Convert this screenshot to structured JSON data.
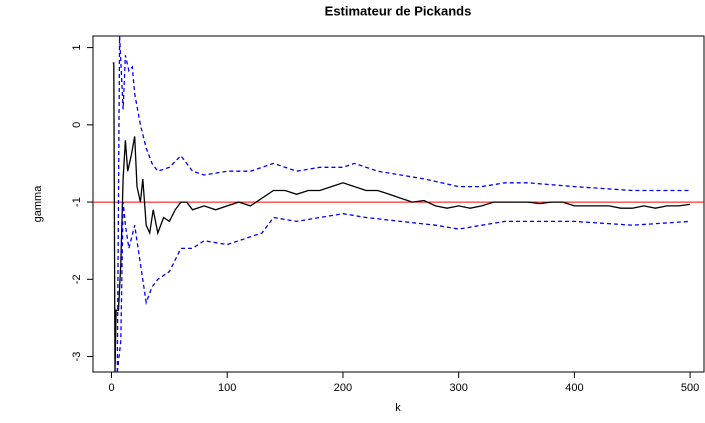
{
  "chart_data": {
    "type": "line",
    "title": "Estimateur de Pickands",
    "xlabel": "k",
    "ylabel": "gamma",
    "xlim": [
      -16,
      512
    ],
    "ylim": [
      -3.2,
      1.15
    ],
    "xticks": [
      0,
      100,
      200,
      300,
      400,
      500
    ],
    "yticks": [
      -3,
      -2,
      -1,
      0,
      1
    ],
    "hline": {
      "value": -1,
      "color": "#ff0000"
    },
    "series": [
      {
        "color": "#000000",
        "dash": false,
        "x": [
          1,
          2,
          3,
          4,
          6,
          8,
          10,
          12,
          14,
          17,
          20,
          22,
          25,
          27,
          30,
          33,
          36,
          40,
          45,
          50,
          55,
          60,
          65,
          70,
          80,
          90,
          100,
          110,
          120,
          130,
          140,
          150,
          160,
          170,
          180,
          190,
          200,
          210,
          220,
          230,
          240,
          250,
          260,
          270,
          280,
          290,
          300,
          310,
          320,
          330,
          340,
          350,
          360,
          370,
          380,
          390,
          400,
          410,
          420,
          430,
          440,
          450,
          460,
          470,
          480,
          490,
          500
        ],
        "values": [
          0.8,
          0.8,
          -3.2,
          -2.4,
          -2.4,
          -1.8,
          -0.7,
          -0.2,
          -0.6,
          -0.4,
          -0.15,
          -0.8,
          -1.0,
          -0.7,
          -1.3,
          -1.4,
          -1.1,
          -1.4,
          -1.2,
          -1.25,
          -1.1,
          -1.0,
          -1.0,
          -1.1,
          -1.05,
          -1.1,
          -1.05,
          -1.0,
          -1.05,
          -0.95,
          -0.85,
          -0.85,
          -0.9,
          -0.85,
          -0.85,
          -0.8,
          -0.75,
          -0.8,
          -0.85,
          -0.85,
          -0.9,
          -0.95,
          -1.0,
          -0.98,
          -1.05,
          -1.08,
          -1.05,
          -1.08,
          -1.05,
          -1.0,
          -1.0,
          -1.0,
          -1.0,
          -1.02,
          -1.0,
          -1.0,
          -1.05,
          -1.05,
          -1.05,
          -1.05,
          -1.08,
          -1.08,
          -1.05,
          -1.08,
          -1.05,
          -1.05,
          -1.03
        ]
      },
      {
        "color": "#0000ff",
        "dash": true,
        "x": [
          5,
          7,
          10,
          12,
          15,
          18,
          20,
          25,
          30,
          35,
          40,
          50,
          60,
          70,
          80,
          100,
          120,
          130,
          140,
          160,
          180,
          200,
          210,
          230,
          250,
          270,
          300,
          320,
          340,
          360,
          400,
          450,
          500
        ],
        "values": [
          -3.2,
          1.15,
          0.2,
          0.9,
          0.7,
          0.75,
          0.4,
          0.0,
          -0.3,
          -0.5,
          -0.6,
          -0.55,
          -0.4,
          -0.6,
          -0.65,
          -0.6,
          -0.6,
          -0.55,
          -0.5,
          -0.6,
          -0.55,
          -0.55,
          -0.5,
          -0.6,
          -0.65,
          -0.7,
          -0.8,
          -0.8,
          -0.75,
          -0.75,
          -0.8,
          -0.85,
          -0.85
        ]
      },
      {
        "color": "#0000ff",
        "dash": true,
        "x": [
          5,
          8,
          10,
          12,
          15,
          20,
          25,
          30,
          35,
          40,
          50,
          60,
          70,
          80,
          100,
          120,
          130,
          140,
          160,
          180,
          200,
          220,
          250,
          280,
          300,
          320,
          340,
          360,
          400,
          450,
          500
        ],
        "values": [
          -3.2,
          -2.8,
          -1.0,
          -1.3,
          -1.6,
          -1.3,
          -1.8,
          -2.3,
          -2.1,
          -2.0,
          -1.9,
          -1.6,
          -1.6,
          -1.5,
          -1.55,
          -1.45,
          -1.4,
          -1.2,
          -1.25,
          -1.2,
          -1.15,
          -1.2,
          -1.25,
          -1.3,
          -1.35,
          -1.3,
          -1.25,
          -1.25,
          -1.25,
          -1.3,
          -1.25
        ]
      }
    ]
  }
}
